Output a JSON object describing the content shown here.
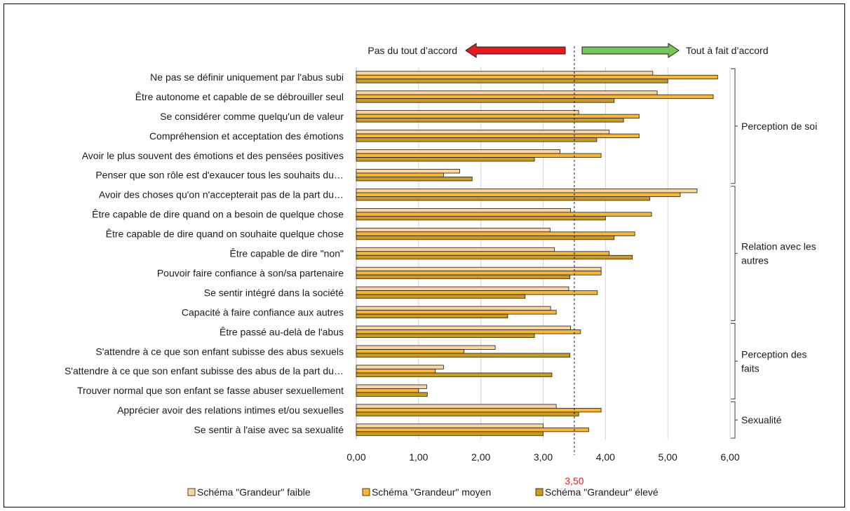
{
  "chart_data": {
    "type": "bar",
    "orientation": "horizontal",
    "xlim": [
      0,
      6
    ],
    "xticks": [
      "0,00",
      "1,00",
      "2,00",
      "3,00",
      "4,00",
      "5,00",
      "6,00"
    ],
    "grid": true,
    "legend_position": "bottom",
    "reference_line": {
      "value": 3.5,
      "label": "3,50",
      "color": "#e02020"
    },
    "arrows": {
      "left": {
        "label": "Pas du tout d’accord",
        "color": "#e8191f"
      },
      "right": {
        "label": "Tout à fait d’accord",
        "color": "#76c55a"
      }
    },
    "categories": [
      "Ne pas se définir uniquement par l'abus subi",
      "Être autonome et capable de se débrouiller seul",
      "Se considérer comme quelqu'un de valeur",
      "Compréhension et acceptation des émotions",
      "Avoir le plus souvent des émotions et des pensées positives",
      "Penser que son rôle est d'exaucer tous les souhaits du…",
      "Avoir des choses qu'on n'accepterait pas de la part du…",
      "Être capable de dire quand on a besoin de quelque chose",
      "Être capable de dire quand on souhaite quelque chose",
      "Être capable de dire \"non\"",
      "Pouvoir faire confiance à son/sa partenaire",
      "Se sentir intégré dans la société",
      "Capacité à faire confiance aux autres",
      "Être passé au-delà de l'abus",
      "S'attendre à ce que son enfant subisse des abus sexuels",
      "S'attendre à ce que son enfant subisse des abus de la part du…",
      "Trouver normal que son enfant se fasse abuser sexuellement",
      "Apprécier avoir des relations intimes et/ou sexuelles",
      "Se sentir à l'aise avec sa sexualité"
    ],
    "series": [
      {
        "name": "Schéma \"Grandeur\" faible",
        "color": "#fbd59b",
        "values": [
          4.76,
          4.83,
          3.57,
          4.06,
          3.27,
          1.66,
          5.47,
          3.44,
          3.11,
          3.18,
          3.93,
          3.41,
          3.12,
          3.44,
          2.23,
          1.4,
          1.13,
          3.21,
          3.0
        ]
      },
      {
        "name": "Schéma \"Grandeur\" moyen",
        "color": "#fbb72b",
        "values": [
          5.8,
          5.73,
          4.54,
          4.54,
          3.93,
          1.4,
          5.2,
          4.74,
          4.47,
          4.06,
          3.93,
          3.87,
          3.21,
          3.6,
          1.73,
          1.27,
          1.0,
          3.93,
          3.73
        ]
      },
      {
        "name": "Schéma \"Grandeur\" élevé",
        "color": "#cc9a1e",
        "values": [
          5.0,
          4.14,
          4.29,
          3.86,
          2.86,
          1.86,
          4.71,
          4.0,
          4.14,
          4.43,
          3.43,
          2.71,
          2.43,
          2.86,
          3.43,
          3.14,
          1.14,
          3.57,
          3.0
        ]
      }
    ],
    "groups": [
      {
        "label": [
          "Perception de soi"
        ],
        "from": 0,
        "to": 5
      },
      {
        "label": [
          "Relation avec les",
          "autres"
        ],
        "from": 6,
        "to": 12
      },
      {
        "label": [
          "Perception des",
          "faits"
        ],
        "from": 13,
        "to": 16
      },
      {
        "label": [
          "Sexualité"
        ],
        "from": 17,
        "to": 18
      }
    ]
  }
}
